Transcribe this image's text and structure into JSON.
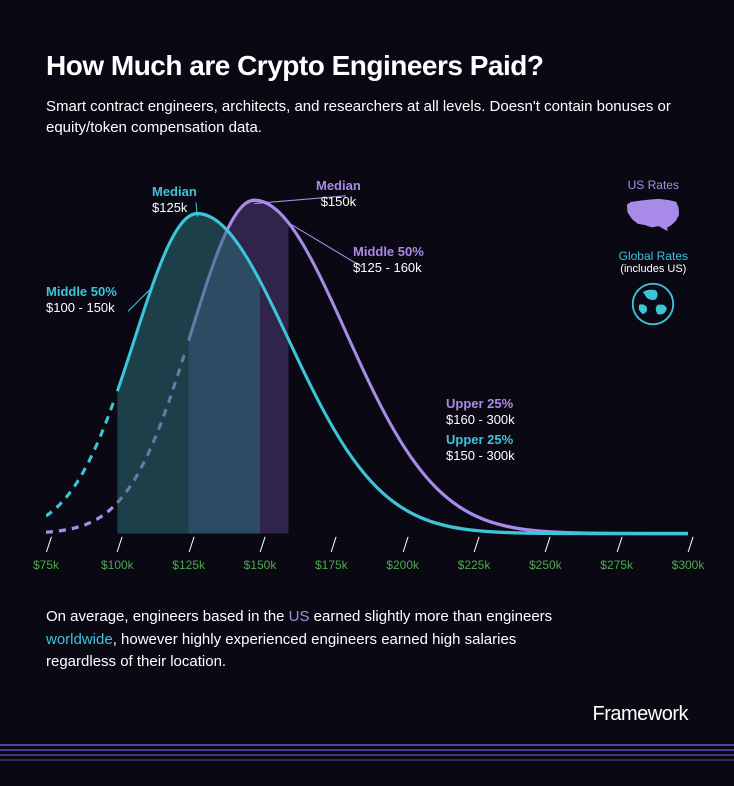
{
  "title": "How Much are Crypto Engineers Paid?",
  "subtitle": "Smart contract engineers, architects, and researchers at all levels. Doesn't contain bonuses or equity/token compensation data.",
  "colors": {
    "background": "#0a0812",
    "text": "#ffffff",
    "global_line": "#3cc5d9",
    "us_line": "#a88be8",
    "tick_label": "#4fa84f",
    "global_fill": "rgba(44,110,120,0.55)",
    "us_fill": "rgba(120,90,180,0.35)",
    "stripe1": "#5a3a9a",
    "stripe2": "#4a3a8a",
    "stripe3": "#3a3a7a",
    "stripe4": "#2f2f60"
  },
  "chart": {
    "type": "density",
    "x_domain": [
      75,
      300
    ],
    "x_ticks": [
      "$75k",
      "$100k",
      "$125k",
      "$150k",
      "$175k",
      "$200k",
      "$225k",
      "$250k",
      "$275k",
      "$300k"
    ],
    "line_width": 3,
    "series": {
      "global": {
        "median_label": "Median",
        "median_value": "$125k",
        "mid50_label": "Middle 50%",
        "mid50_value": "$100 - 150k",
        "upper25_label": "Upper 25%",
        "upper25_value": "$150 - 300k",
        "mid50_range": [
          100,
          150
        ],
        "upper25_range": [
          150,
          300
        ],
        "peak_x": 128,
        "peak_h": 0.96,
        "dash_below": 100
      },
      "us": {
        "median_label": "Median",
        "median_value": "$150k",
        "mid50_label": "Middle 50%",
        "mid50_value": "$125 - 160k",
        "upper25_label": "Upper 25%",
        "upper25_value": "$160 - 300k",
        "mid50_range": [
          125,
          160
        ],
        "upper25_range": [
          160,
          300
        ],
        "peak_x": 148,
        "peak_h": 1.0,
        "dash_below": 125
      }
    }
  },
  "legend": {
    "us_label": "US Rates",
    "global_label": "Global Rates",
    "global_sub": "(includes US)"
  },
  "body_text": {
    "prefix": "On average, engineers based in the ",
    "hl1": "US",
    "mid": " earned slightly more than engineers ",
    "hl2": "worldwide",
    "suffix": ", however highly experienced engineers earned high salaries regardless of their location."
  },
  "logo": "Framework"
}
